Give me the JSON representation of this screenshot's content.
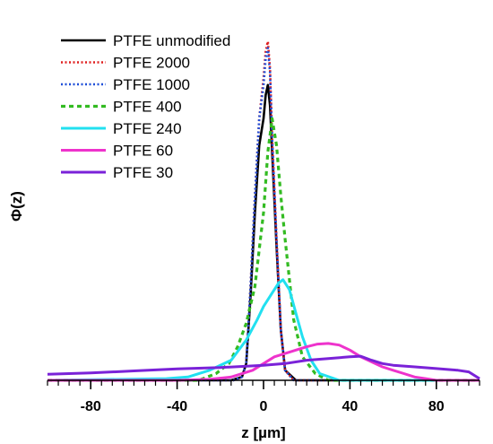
{
  "chart_data": {
    "type": "line",
    "title": "",
    "xlabel": "z [µm]",
    "ylabel": "Φ(z)",
    "xlim": [
      -100,
      100
    ],
    "ylim": [
      0,
      1.08
    ],
    "xticks": [
      -80,
      -40,
      0,
      40,
      80
    ],
    "xtick_labels": [
      "-80",
      "-40",
      "0",
      "40",
      "80"
    ],
    "grid": false,
    "legend_position": "top-left",
    "series": [
      {
        "name": "PTFE unmodified",
        "color": "#000000",
        "style": "solid",
        "width": 2.6,
        "x": [
          -100,
          -15,
          -10,
          -8,
          -6,
          -4,
          -2,
          0,
          1,
          2,
          3,
          4,
          6,
          8,
          10,
          15,
          100
        ],
        "y": [
          0,
          0,
          0.01,
          0.05,
          0.25,
          0.5,
          0.7,
          0.78,
          0.85,
          0.88,
          0.82,
          0.68,
          0.4,
          0.15,
          0.03,
          0,
          0
        ]
      },
      {
        "name": "PTFE 2000",
        "color": "#e02020",
        "style": "dotted",
        "width": 2.6,
        "x": [
          -100,
          -14,
          -10,
          -8,
          -6,
          -4,
          -2,
          0,
          1,
          2,
          3,
          4,
          6,
          8,
          10,
          14,
          100
        ],
        "y": [
          0,
          0,
          0.01,
          0.05,
          0.28,
          0.55,
          0.78,
          0.9,
          0.98,
          1.01,
          0.93,
          0.72,
          0.42,
          0.15,
          0.03,
          0,
          0
        ]
      },
      {
        "name": "PTFE 1000",
        "color": "#1f4fd8",
        "style": "dotted",
        "width": 2.6,
        "x": [
          -100,
          -14,
          -10,
          -8,
          -6,
          -4,
          -2,
          0,
          1,
          2,
          3,
          4,
          6,
          8,
          10,
          14,
          100
        ],
        "y": [
          0,
          0,
          0.01,
          0.05,
          0.28,
          0.55,
          0.78,
          0.88,
          0.96,
          0.99,
          0.92,
          0.72,
          0.42,
          0.15,
          0.03,
          0,
          0
        ]
      },
      {
        "name": "PTFE 400",
        "color": "#33bb22",
        "style": "dashed",
        "width": 3.2,
        "x": [
          -100,
          -30,
          -22,
          -16,
          -12,
          -8,
          -4,
          0,
          2,
          4,
          6,
          8,
          10,
          12,
          14,
          18,
          24,
          30,
          100
        ],
        "y": [
          0,
          0,
          0.02,
          0.05,
          0.1,
          0.17,
          0.28,
          0.5,
          0.68,
          0.78,
          0.7,
          0.55,
          0.42,
          0.3,
          0.18,
          0.07,
          0.02,
          0,
          0
        ]
      },
      {
        "name": "PTFE 240",
        "color": "#22e0f0",
        "style": "solid",
        "width": 3,
        "x": [
          -100,
          -45,
          -35,
          -25,
          -15,
          -8,
          -3,
          0,
          4,
          7,
          9,
          12,
          15,
          18,
          22,
          26,
          35,
          100
        ],
        "y": [
          0,
          0.005,
          0.01,
          0.03,
          0.06,
          0.12,
          0.18,
          0.22,
          0.26,
          0.29,
          0.3,
          0.27,
          0.2,
          0.13,
          0.06,
          0.02,
          0,
          0
        ]
      },
      {
        "name": "PTFE 60",
        "color": "#ee33cc",
        "style": "solid",
        "width": 3,
        "x": [
          -100,
          -40,
          -25,
          -15,
          -5,
          0,
          5,
          10,
          15,
          20,
          25,
          30,
          35,
          40,
          45,
          50,
          55,
          60,
          65,
          70,
          75,
          80,
          100
        ],
        "y": [
          0,
          0,
          0.003,
          0.01,
          0.03,
          0.05,
          0.07,
          0.08,
          0.09,
          0.1,
          0.108,
          0.11,
          0.105,
          0.09,
          0.07,
          0.055,
          0.04,
          0.03,
          0.02,
          0.01,
          0.005,
          0,
          0
        ]
      },
      {
        "name": "PTFE 30",
        "color": "#7a22d8",
        "style": "solid",
        "width": 3,
        "x": [
          -100,
          -80,
          -60,
          -40,
          -20,
          0,
          10,
          20,
          30,
          40,
          45,
          50,
          55,
          60,
          70,
          80,
          90,
          95,
          100
        ],
        "y": [
          0.018,
          0.022,
          0.028,
          0.034,
          0.038,
          0.045,
          0.05,
          0.06,
          0.065,
          0.07,
          0.072,
          0.06,
          0.05,
          0.045,
          0.04,
          0.035,
          0.03,
          0.025,
          0.005
        ]
      }
    ]
  }
}
